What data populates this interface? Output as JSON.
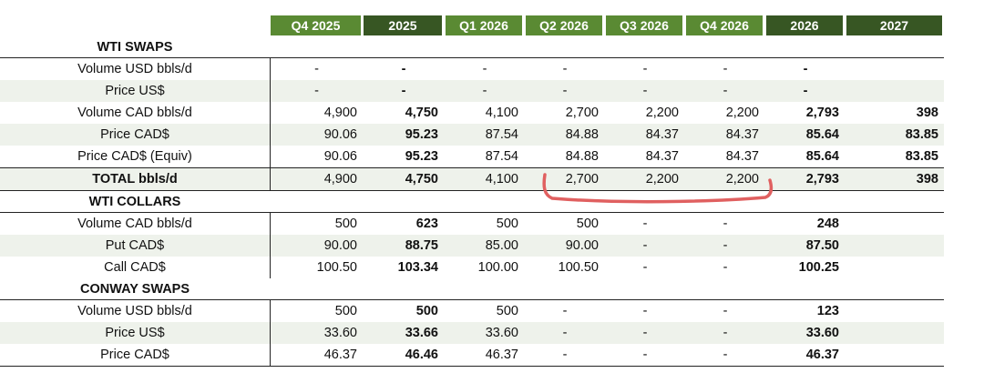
{
  "columns": [
    {
      "label": "Q4 2025",
      "style": "light"
    },
    {
      "label": "2025",
      "style": "dark"
    },
    {
      "label": "Q1 2026",
      "style": "light"
    },
    {
      "label": "Q2 2026",
      "style": "light"
    },
    {
      "label": "Q3 2026",
      "style": "light"
    },
    {
      "label": "Q4 2026",
      "style": "light"
    },
    {
      "label": "2026",
      "style": "dark"
    },
    {
      "label": "2027",
      "style": "dark"
    }
  ],
  "sections": [
    {
      "title": "WTI SWAPS",
      "rows": [
        {
          "label": "Volume USD bbls/d",
          "values": [
            "-",
            "-",
            "-",
            "-",
            "-",
            "-",
            "-",
            ""
          ]
        },
        {
          "label": "Price US$",
          "values": [
            "-",
            "-",
            "-",
            "-",
            "-",
            "-",
            "-",
            ""
          ]
        },
        {
          "label": "Volume CAD bbls/d",
          "values": [
            "4,900",
            "4,750",
            "4,100",
            "2,700",
            "2,200",
            "2,200",
            "2,793",
            "398"
          ]
        },
        {
          "label": "Price CAD$",
          "values": [
            "90.06",
            "95.23",
            "87.54",
            "84.88",
            "84.37",
            "84.37",
            "85.64",
            "83.85"
          ]
        },
        {
          "label": "Price CAD$ (Equiv)",
          "values": [
            "90.06",
            "95.23",
            "87.54",
            "84.88",
            "84.37",
            "84.37",
            "85.64",
            "83.85"
          ]
        }
      ],
      "total": {
        "label": "TOTAL bbls/d",
        "values": [
          "4,900",
          "4,750",
          "4,100",
          "2,700",
          "2,200",
          "2,200",
          "2,793",
          "398"
        ]
      }
    },
    {
      "title": "WTI COLLARS",
      "rows": [
        {
          "label": "Volume CAD bbls/d",
          "values": [
            "500",
            "623",
            "500",
            "500",
            "-",
            "-",
            "248",
            ""
          ]
        },
        {
          "label": "Put CAD$",
          "values": [
            "90.00",
            "88.75",
            "85.00",
            "90.00",
            "-",
            "-",
            "87.50",
            ""
          ]
        },
        {
          "label": "Call CAD$",
          "values": [
            "100.50",
            "103.34",
            "100.00",
            "100.50",
            "-",
            "-",
            "100.25",
            ""
          ]
        }
      ]
    },
    {
      "title": "CONWAY SWAPS",
      "rows": [
        {
          "label": "Volume USD bbls/d",
          "values": [
            "500",
            "500",
            "500",
            "-",
            "-",
            "-",
            "123",
            ""
          ]
        },
        {
          "label": "Price US$",
          "values": [
            "33.60",
            "33.66",
            "33.60",
            "-",
            "-",
            "-",
            "33.60",
            ""
          ]
        },
        {
          "label": "Price CAD$",
          "values": [
            "46.37",
            "46.46",
            "46.37",
            "-",
            "-",
            "-",
            "46.37",
            ""
          ]
        }
      ]
    }
  ],
  "annotation_color": "#e06060"
}
